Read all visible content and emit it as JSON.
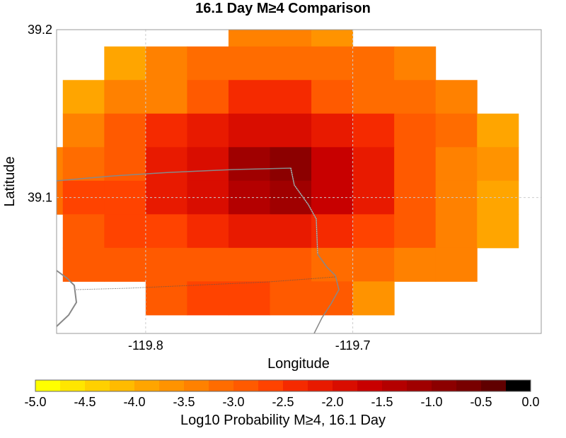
{
  "chart_data": {
    "type": "heatmap",
    "title": "16.1 Day M≥4 Comparison",
    "xlabel": "Longitude",
    "ylabel": "Latitude",
    "x_ticks": [
      "-119.8",
      "-119.7"
    ],
    "y_ticks": [
      "39.2",
      "39.1"
    ],
    "x_tick_values": [
      -119.8,
      -119.7
    ],
    "y_tick_values": [
      39.2,
      39.1
    ],
    "xlim": [
      -119.843,
      -119.609
    ],
    "ylim": [
      39.019,
      39.2
    ],
    "grid": true,
    "cell_size_deg": 0.02,
    "x_centers": [
      -119.85,
      -119.83,
      -119.81,
      -119.79,
      -119.77,
      -119.75,
      -119.73,
      -119.71,
      -119.69,
      -119.67,
      -119.65,
      -119.63,
      -119.61
    ],
    "y_centers": [
      39.2,
      39.18,
      39.16,
      39.14,
      39.12,
      39.1,
      39.08,
      39.06,
      39.04
    ],
    "log10_probability": [
      [
        null,
        null,
        null,
        null,
        null,
        -3.3,
        -3.3,
        -3.7,
        null,
        null,
        null,
        null,
        null
      ],
      [
        null,
        null,
        -3.8,
        -3.5,
        -3.1,
        -3.1,
        -3.1,
        -3.1,
        -3.1,
        -3.5,
        null,
        null,
        null
      ],
      [
        null,
        -3.8,
        -3.3,
        -3.3,
        -2.9,
        -2.5,
        -2.5,
        -2.9,
        -3.1,
        -3.1,
        -3.3,
        null,
        null
      ],
      [
        null,
        -3.5,
        -2.9,
        -2.5,
        -2.2,
        -1.9,
        -1.9,
        -2.2,
        -2.5,
        -2.9,
        -3.1,
        -3.8,
        null
      ],
      [
        -3.4,
        -3.1,
        -2.9,
        -2.2,
        -2.0,
        -1.1,
        -1.0,
        -1.7,
        -2.2,
        -2.9,
        -3.3,
        -3.6,
        null
      ],
      [
        -3.2,
        -2.6,
        -2.6,
        -2.2,
        -1.9,
        -1.4,
        -1.1,
        -1.7,
        -2.2,
        -2.9,
        -3.5,
        -3.8,
        null
      ],
      [
        null,
        -3.0,
        -2.6,
        -2.6,
        -2.3,
        -2.1,
        -2.1,
        -2.3,
        -2.6,
        -3.0,
        -3.5,
        -3.8,
        null
      ],
      [
        null,
        -3.0,
        -2.8,
        -2.8,
        -2.8,
        -2.8,
        -2.8,
        -3.1,
        -3.1,
        -3.3,
        -3.5,
        null,
        null
      ],
      [
        null,
        null,
        null,
        -3.0,
        -2.7,
        -2.7,
        -2.8,
        -2.9,
        -3.6,
        null,
        null,
        null,
        null
      ]
    ],
    "colorbar": {
      "label": "Log10 Probability M≥4, 16.1 Day",
      "min": -5.0,
      "max": 0.0,
      "ticks": [
        "-5.0",
        "-4.5",
        "-4.0",
        "-3.5",
        "-3.0",
        "-2.5",
        "-2.0",
        "-1.5",
        "-1.0",
        "-0.5",
        "0.0"
      ],
      "tick_values": [
        -5.0,
        -4.5,
        -4.0,
        -3.5,
        -3.0,
        -2.5,
        -2.0,
        -1.5,
        -1.0,
        -0.5,
        0.0
      ],
      "steps": 20,
      "colors": [
        "#ffff00",
        "#ffe600",
        "#ffd000",
        "#ffbb00",
        "#ffa500",
        "#ff9300",
        "#ff8100",
        "#ff6c00",
        "#ff5a00",
        "#ff4300",
        "#f52a00",
        "#e81a00",
        "#d90d00",
        "#c80000",
        "#b40000",
        "#a00000",
        "#8c0000",
        "#780000",
        "#600000",
        "#440000"
      ],
      "end_color": "#000000"
    },
    "boundary_lines": {
      "color": "#888888",
      "style": "state/county borders (solid and dotted)"
    }
  }
}
